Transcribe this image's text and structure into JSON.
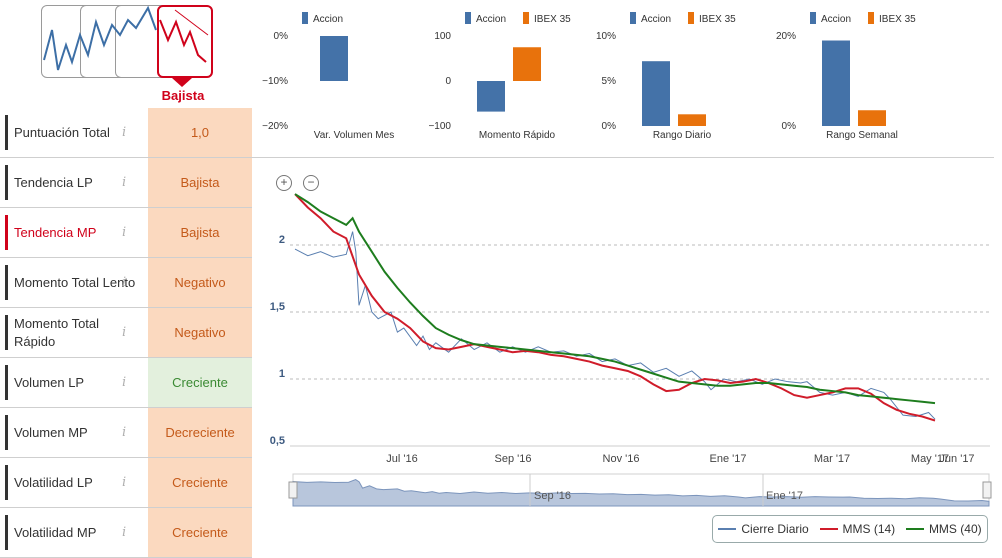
{
  "trend": {
    "active_label": "Bajista",
    "accent": "#d0021b",
    "line_color": "#3d6fa6"
  },
  "indicators": [
    {
      "label": "Puntuación Total",
      "value": "1,0",
      "style": "neutral",
      "highlight": false
    },
    {
      "label": "Tendencia LP",
      "value": "Bajista",
      "style": "orange",
      "highlight": false
    },
    {
      "label": "Tendencia MP",
      "value": "Bajista",
      "style": "orange",
      "highlight": true
    },
    {
      "label": "Momento Total Lento",
      "value": "Negativo",
      "style": "orange",
      "highlight": false
    },
    {
      "label": "Momento Total Rápido",
      "value": "Negativo",
      "style": "orange",
      "highlight": false
    },
    {
      "label": "Volumen LP",
      "value": "Creciente",
      "style": "green",
      "highlight": false
    },
    {
      "label": "Volumen MP",
      "value": "Decreciente",
      "style": "orange",
      "highlight": false
    },
    {
      "label": "Volatilidad LP",
      "value": "Creciente",
      "style": "orange",
      "highlight": false
    },
    {
      "label": "Volatilidad MP",
      "value": "Creciente",
      "style": "orange",
      "highlight": false
    }
  ],
  "colors": {
    "accion": "#4472a8",
    "ibex": "#e8720c",
    "close": "#5a7fb0",
    "mms14": "#d01c2a",
    "mms40": "#1e7d1e"
  },
  "chart_data": [
    {
      "type": "bar",
      "categories": [
        "Var. Volumen Mes"
      ],
      "series": [
        {
          "name": "Accion",
          "values": [
            -10
          ]
        }
      ],
      "ylim": [
        -20,
        0
      ],
      "yticks": [
        "0%",
        "−10%",
        "−20%"
      ],
      "xlabel": "Var. Volumen Mes"
    },
    {
      "type": "bar",
      "categories": [
        "Momento Rápido"
      ],
      "series": [
        {
          "name": "Accion",
          "values": [
            -68
          ]
        },
        {
          "name": "IBEX 35",
          "values": [
            75
          ]
        }
      ],
      "ylim": [
        -100,
        100
      ],
      "yticks": [
        "100",
        "0",
        "−100"
      ],
      "xlabel": "Momento Rápido"
    },
    {
      "type": "bar",
      "categories": [
        "Rango Diario"
      ],
      "series": [
        {
          "name": "Accion",
          "values": [
            7.2
          ]
        },
        {
          "name": "IBEX 35",
          "values": [
            1.3
          ]
        }
      ],
      "ylim": [
        0,
        10
      ],
      "yticks": [
        "10%",
        "5%",
        "0%"
      ],
      "xlabel": "Rango Diario"
    },
    {
      "type": "bar",
      "categories": [
        "Rango Semanal"
      ],
      "series": [
        {
          "name": "Accion",
          "values": [
            19
          ]
        },
        {
          "name": "IBEX 35",
          "values": [
            3.5
          ]
        }
      ],
      "ylim": [
        0,
        20
      ],
      "yticks": [
        "20%",
        "0%"
      ],
      "xlabel": "Rango Semanal"
    },
    {
      "type": "line",
      "xticks": [
        "Jul '16",
        "Sep '16",
        "Nov '16",
        "Ene '17",
        "Mar '17",
        "May '17",
        "Jun '17"
      ],
      "yticks": [
        "2",
        "1,5",
        "1",
        "0,5"
      ],
      "ylim": [
        0.5,
        2.5
      ],
      "navigator_labels": [
        "Sep '16",
        "Ene '17"
      ],
      "series": [
        {
          "name": "Cierre Diario",
          "points": [
            [
              0,
              1.97
            ],
            [
              2,
              1.92
            ],
            [
              4,
              1.95
            ],
            [
              6,
              1.91
            ],
            [
              8,
              1.93
            ],
            [
              9,
              2.1
            ],
            [
              9.5,
              1.95
            ],
            [
              10,
              1.55
            ],
            [
              11,
              1.7
            ],
            [
              12,
              1.5
            ],
            [
              13,
              1.45
            ],
            [
              15,
              1.5
            ],
            [
              16,
              1.35
            ],
            [
              17,
              1.38
            ],
            [
              19,
              1.25
            ],
            [
              20,
              1.32
            ],
            [
              21,
              1.22
            ],
            [
              22,
              1.27
            ],
            [
              24,
              1.2
            ],
            [
              26,
              1.3
            ],
            [
              28,
              1.22
            ],
            [
              30,
              1.27
            ],
            [
              32,
              1.2
            ],
            [
              34,
              1.24
            ],
            [
              36,
              1.2
            ],
            [
              38,
              1.24
            ],
            [
              40,
              1.2
            ],
            [
              42,
              1.21
            ],
            [
              44,
              1.17
            ],
            [
              46,
              1.19
            ],
            [
              48,
              1.13
            ],
            [
              50,
              1.15
            ],
            [
              52,
              1.1
            ],
            [
              54,
              1.12
            ],
            [
              56,
              1.05
            ],
            [
              58,
              1.08
            ],
            [
              60,
              1.02
            ],
            [
              62,
              1.06
            ],
            [
              64,
              0.98
            ],
            [
              65,
              0.92
            ],
            [
              67,
              1.0
            ],
            [
              69,
              0.98
            ],
            [
              71,
              1.0
            ],
            [
              73,
              0.96
            ],
            [
              75,
              1.0
            ],
            [
              77,
              0.98
            ],
            [
              79,
              0.97
            ],
            [
              80,
              0.98
            ],
            [
              82,
              0.9
            ],
            [
              84,
              0.88
            ],
            [
              86,
              0.9
            ],
            [
              88,
              0.87
            ],
            [
              90,
              0.93
            ],
            [
              92,
              0.9
            ],
            [
              93,
              0.85
            ],
            [
              95,
              0.73
            ],
            [
              97,
              0.72
            ],
            [
              99,
              0.75
            ],
            [
              100,
              0.7
            ]
          ]
        },
        {
          "name": "MMS (14)",
          "points": [
            [
              0,
              2.38
            ],
            [
              2,
              2.28
            ],
            [
              4,
              2.2
            ],
            [
              6,
              2.1
            ],
            [
              8,
              2.05
            ],
            [
              10,
              1.78
            ],
            [
              12,
              1.62
            ],
            [
              14,
              1.5
            ],
            [
              16,
              1.45
            ],
            [
              18,
              1.38
            ],
            [
              20,
              1.28
            ],
            [
              22,
              1.23
            ],
            [
              24,
              1.22
            ],
            [
              26,
              1.24
            ],
            [
              28,
              1.26
            ],
            [
              30,
              1.24
            ],
            [
              32,
              1.22
            ],
            [
              34,
              1.2
            ],
            [
              36,
              1.21
            ],
            [
              38,
              1.2
            ],
            [
              40,
              1.18
            ],
            [
              42,
              1.17
            ],
            [
              44,
              1.15
            ],
            [
              46,
              1.13
            ],
            [
              48,
              1.1
            ],
            [
              50,
              1.08
            ],
            [
              52,
              1.06
            ],
            [
              54,
              1.02
            ],
            [
              56,
              0.96
            ],
            [
              58,
              0.91
            ],
            [
              60,
              0.92
            ],
            [
              62,
              0.97
            ],
            [
              64,
              1.0
            ],
            [
              66,
              0.99
            ],
            [
              68,
              0.97
            ],
            [
              70,
              0.98
            ],
            [
              72,
              1.0
            ],
            [
              74,
              0.97
            ],
            [
              76,
              0.93
            ],
            [
              78,
              0.88
            ],
            [
              80,
              0.86
            ],
            [
              82,
              0.88
            ],
            [
              84,
              0.9
            ],
            [
              86,
              0.93
            ],
            [
              88,
              0.93
            ],
            [
              90,
              0.89
            ],
            [
              92,
              0.82
            ],
            [
              94,
              0.77
            ],
            [
              96,
              0.74
            ],
            [
              98,
              0.72
            ],
            [
              100,
              0.69
            ]
          ]
        },
        {
          "name": "MMS (40)",
          "points": [
            [
              0,
              2.38
            ],
            [
              2,
              2.32
            ],
            [
              4,
              2.25
            ],
            [
              6,
              2.2
            ],
            [
              8,
              2.15
            ],
            [
              9,
              2.2
            ],
            [
              10,
              2.1
            ],
            [
              12,
              1.95
            ],
            [
              14,
              1.8
            ],
            [
              16,
              1.68
            ],
            [
              18,
              1.57
            ],
            [
              20,
              1.47
            ],
            [
              22,
              1.38
            ],
            [
              24,
              1.33
            ],
            [
              26,
              1.29
            ],
            [
              28,
              1.26
            ],
            [
              30,
              1.25
            ],
            [
              32,
              1.24
            ],
            [
              34,
              1.23
            ],
            [
              36,
              1.22
            ],
            [
              38,
              1.21
            ],
            [
              40,
              1.2
            ],
            [
              42,
              1.19
            ],
            [
              44,
              1.18
            ],
            [
              46,
              1.17
            ],
            [
              48,
              1.15
            ],
            [
              50,
              1.13
            ],
            [
              52,
              1.1
            ],
            [
              54,
              1.07
            ],
            [
              56,
              1.04
            ],
            [
              58,
              1.01
            ],
            [
              60,
              0.98
            ],
            [
              62,
              0.97
            ],
            [
              64,
              0.96
            ],
            [
              66,
              0.95
            ],
            [
              68,
              0.95
            ],
            [
              70,
              0.96
            ],
            [
              72,
              0.97
            ],
            [
              74,
              0.97
            ],
            [
              76,
              0.96
            ],
            [
              78,
              0.95
            ],
            [
              80,
              0.94
            ],
            [
              82,
              0.92
            ],
            [
              84,
              0.91
            ],
            [
              86,
              0.9
            ],
            [
              88,
              0.88
            ],
            [
              90,
              0.87
            ],
            [
              92,
              0.86
            ],
            [
              94,
              0.85
            ],
            [
              96,
              0.84
            ],
            [
              98,
              0.83
            ],
            [
              100,
              0.82
            ]
          ]
        }
      ],
      "legend": [
        "Cierre Diario",
        "MMS (14)",
        "MMS (40)"
      ]
    }
  ]
}
